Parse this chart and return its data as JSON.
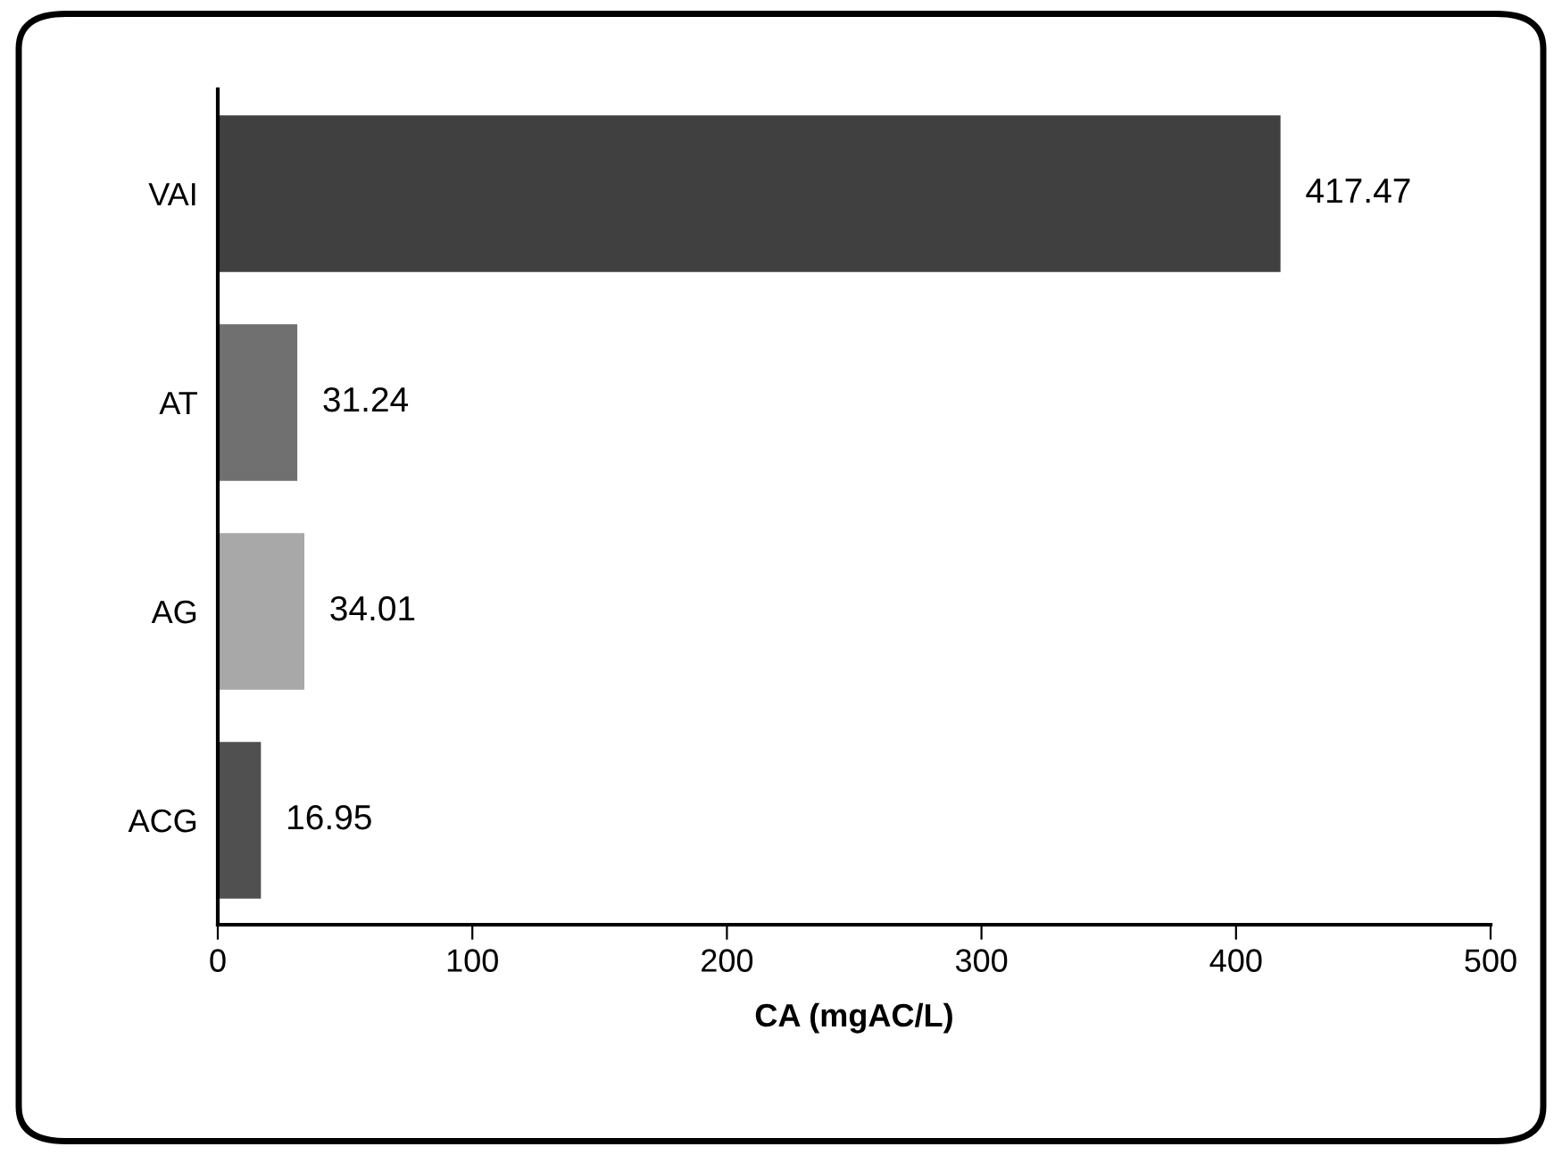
{
  "chart_data": {
    "type": "bar",
    "orientation": "horizontal",
    "xlabel": "CA (mgAC/L)",
    "categories": [
      "VAI",
      "AT",
      "AG",
      "ACG"
    ],
    "values": [
      417.47,
      31.24,
      34.01,
      16.95
    ],
    "colors": [
      "#404040",
      "#707070",
      "#a8a8a8",
      "#505050"
    ],
    "xlim": [
      0,
      500
    ],
    "xticks": [
      0,
      100,
      200,
      300,
      400,
      500
    ],
    "data_labels": true,
    "grid": false
  }
}
